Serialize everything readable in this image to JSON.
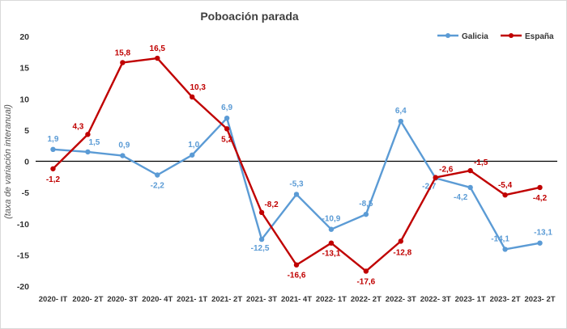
{
  "chart_data": {
    "type": "line",
    "title": "Poboación parada",
    "xlabel": "",
    "ylabel": "(taxa de variación interanual)",
    "ylim": [
      -20,
      20
    ],
    "yticks": [
      20,
      15,
      10,
      5,
      0,
      -5,
      -10,
      -15,
      -20
    ],
    "categories": [
      "2020- IT",
      "2020- 2T",
      "2020- 3T",
      "2020- 4T",
      "2021- 1T",
      "2021- 2T",
      "2021- 3T",
      "2021- 4T",
      "2022- 1T",
      "2022- 2T",
      "2022- 3T",
      "2022- 3T",
      "2023- 1T",
      "2023- 2T",
      "2023- 2T"
    ],
    "legend_position": "top-right",
    "grid": false,
    "series": [
      {
        "name": "Galicia",
        "color": "#5b9bd5",
        "values": [
          1.9,
          1.5,
          0.9,
          -2.2,
          1.0,
          6.9,
          -12.5,
          -5.3,
          -10.9,
          -8.5,
          6.4,
          -2.7,
          -4.2,
          -14.1,
          -13.1
        ],
        "labels": [
          "1,9",
          "1,5",
          "0,9",
          "-2,2",
          "1,0",
          "6,9",
          "-12,5",
          "-5,3",
          "-10,9",
          "-8,5",
          "6,4",
          "-2,7",
          "-4,2",
          "-14,1",
          "-13,1"
        ]
      },
      {
        "name": "España",
        "color": "#c00000",
        "values": [
          -1.2,
          4.3,
          15.8,
          16.5,
          10.3,
          5.2,
          -8.2,
          -16.6,
          -13.1,
          -17.6,
          -12.8,
          -2.6,
          -1.5,
          -5.4,
          -4.2
        ],
        "labels": [
          "-1,2",
          "4,3",
          "15,8",
          "16,5",
          "10,3",
          "5,2",
          "-8,2",
          "-16,6",
          "-13,1",
          "-17,6",
          "-12,8",
          "-2,6",
          "-1,5",
          "-5,4",
          "-4,2"
        ]
      }
    ]
  }
}
